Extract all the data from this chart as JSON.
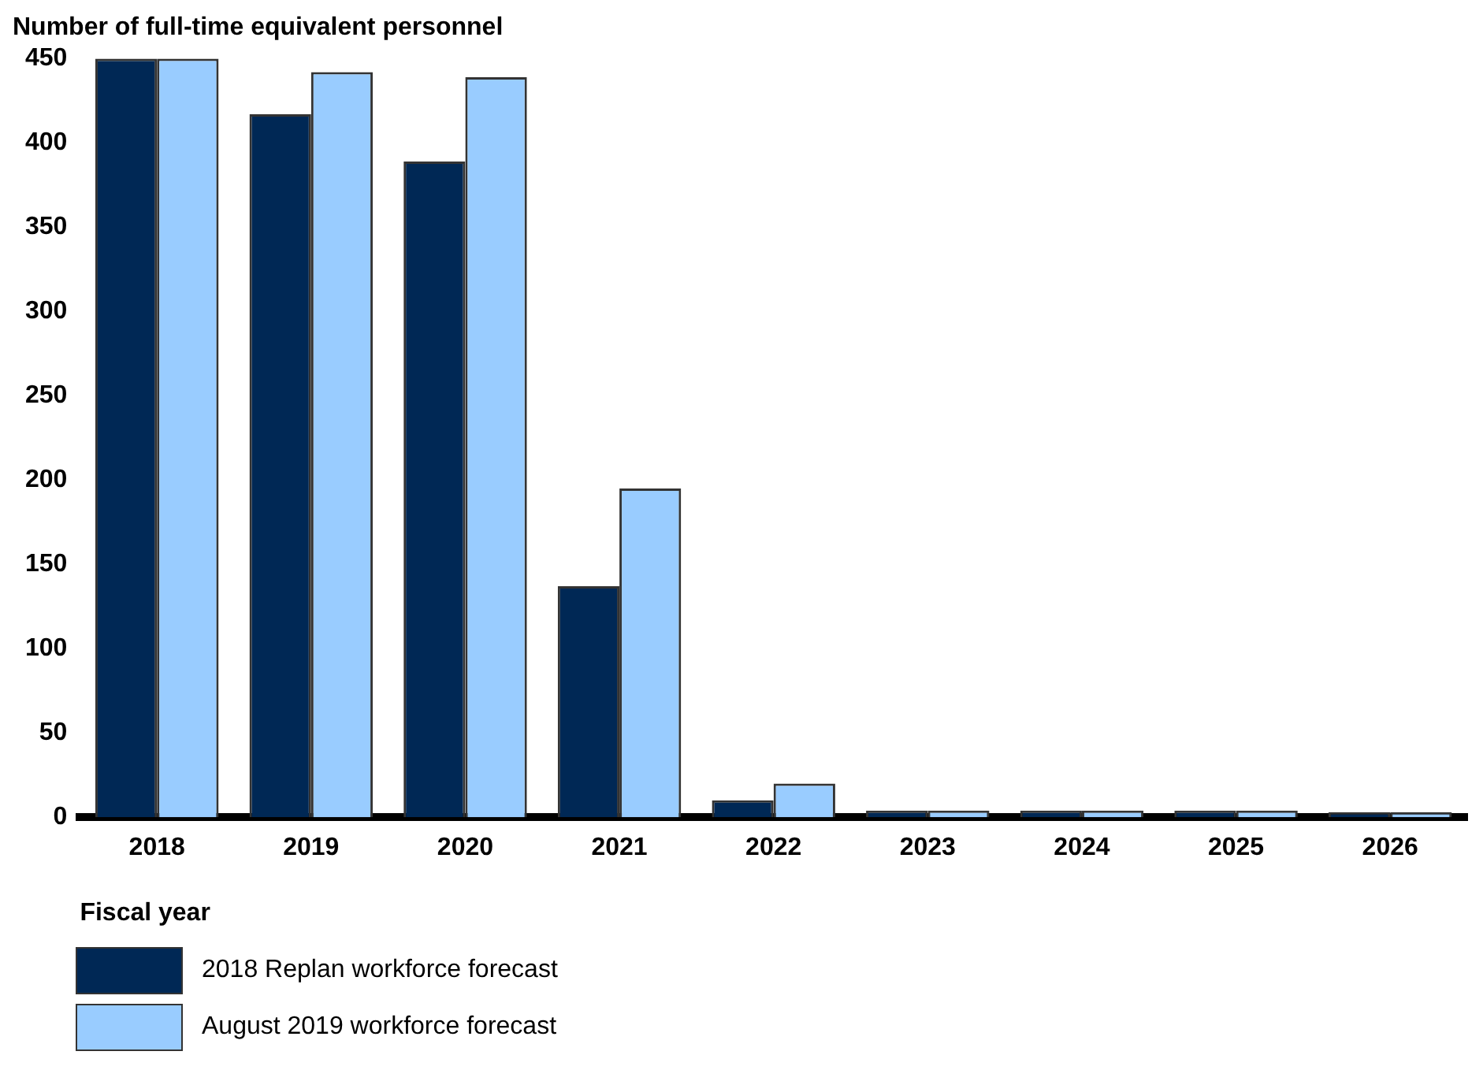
{
  "chart_data": {
    "type": "bar",
    "ylabel": "Number of full-time equivalent personnel",
    "xlabel": "Fiscal year",
    "categories": [
      "2018",
      "2019",
      "2020",
      "2021",
      "2022",
      "2023",
      "2024",
      "2025",
      "2026"
    ],
    "series": [
      {
        "name": "2018 Replan workforce forecast",
        "color": "#002855",
        "values": [
          450,
          417,
          389,
          137,
          10,
          4,
          4,
          4,
          3
        ]
      },
      {
        "name": "August 2019 workforce forecast",
        "color": "#99ccff",
        "values": [
          450,
          442,
          439,
          195,
          20,
          4,
          4,
          4,
          3
        ]
      }
    ],
    "ylim": [
      0,
      450
    ],
    "yticks": [
      0,
      50,
      100,
      150,
      200,
      250,
      300,
      350,
      400,
      450
    ],
    "grid": false,
    "legend": "bottom left"
  }
}
